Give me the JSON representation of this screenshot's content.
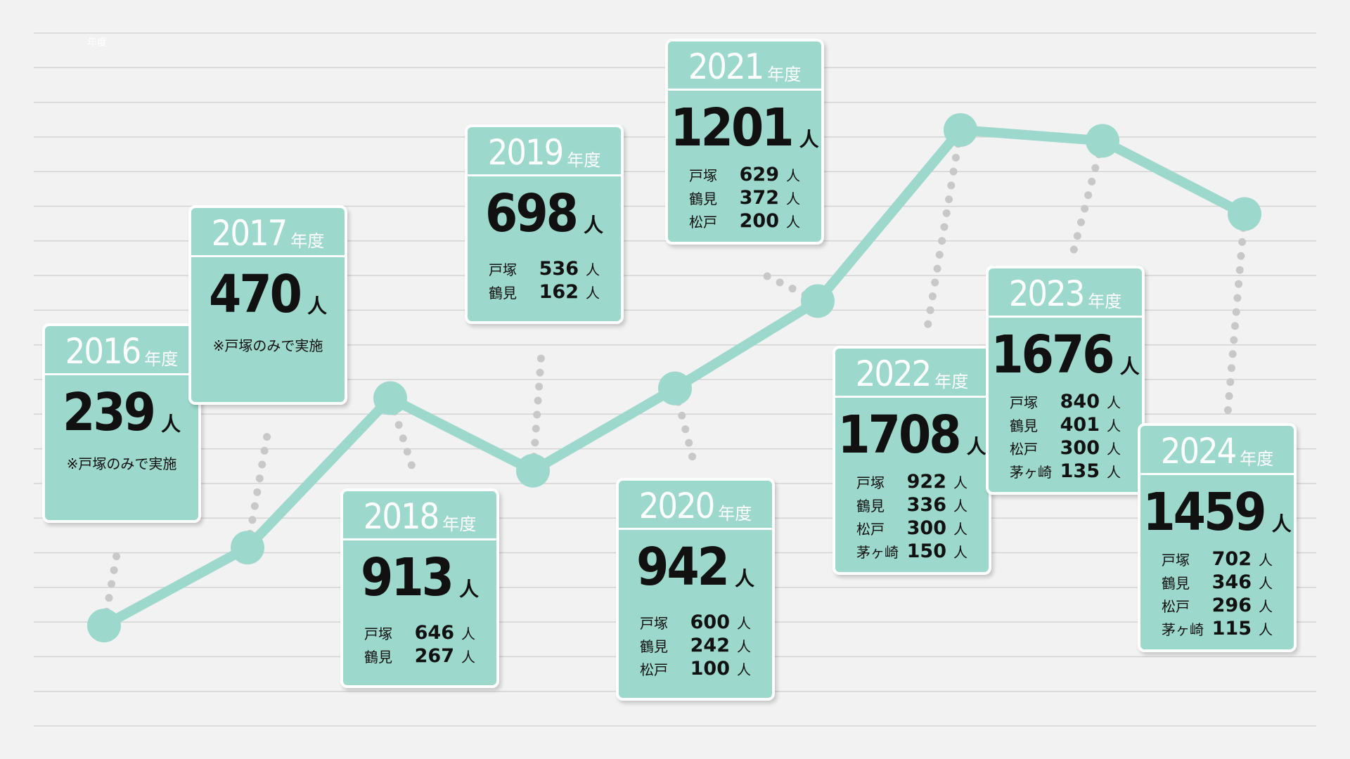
{
  "colors": {
    "background": "#f2f2f2",
    "line": "#9dd8cd",
    "card": "#9dd8cd",
    "dots": "#c8c8c8",
    "grid": "#d4d4d4"
  },
  "corner_label": "年度",
  "year_suffix": "年度",
  "unit": "人",
  "chart_data": {
    "type": "line",
    "title": "",
    "xlabel": "",
    "ylabel": "",
    "grid": true,
    "categories": [
      "2016",
      "2017",
      "2018",
      "2019",
      "2020",
      "2021",
      "2022",
      "2023",
      "2024"
    ],
    "values": [
      239,
      470,
      913,
      698,
      942,
      1201,
      1708,
      1676,
      1459
    ],
    "series": [
      {
        "values": [
          239,
          470,
          913,
          698,
          942,
          1201,
          1708,
          1676,
          1459
        ]
      }
    ],
    "ylim": [
      0,
      1800
    ]
  },
  "cards": [
    {
      "year": "2016",
      "total": "239",
      "note": "※戸塚のみで実施",
      "rows": []
    },
    {
      "year": "2017",
      "total": "470",
      "note": "※戸塚のみで実施",
      "rows": []
    },
    {
      "year": "2018",
      "total": "913",
      "note": "",
      "rows": [
        {
          "name": "戸塚",
          "value": "646"
        },
        {
          "name": "鶴見",
          "value": "267"
        }
      ]
    },
    {
      "year": "2019",
      "total": "698",
      "note": "",
      "rows": [
        {
          "name": "戸塚",
          "value": "536"
        },
        {
          "name": "鶴見",
          "value": "162"
        }
      ]
    },
    {
      "year": "2020",
      "total": "942",
      "note": "",
      "rows": [
        {
          "name": "戸塚",
          "value": "600"
        },
        {
          "name": "鶴見",
          "value": "242"
        },
        {
          "name": "松戸",
          "value": "100"
        }
      ]
    },
    {
      "year": "2021",
      "total": "1201",
      "note": "",
      "rows": [
        {
          "name": "戸塚",
          "value": "629"
        },
        {
          "name": "鶴見",
          "value": "372"
        },
        {
          "name": "松戸",
          "value": "200"
        }
      ]
    },
    {
      "year": "2022",
      "total": "1708",
      "note": "",
      "rows": [
        {
          "name": "戸塚",
          "value": "922"
        },
        {
          "name": "鶴見",
          "value": "336"
        },
        {
          "name": "松戸",
          "value": "300"
        },
        {
          "name": "茅ヶ崎",
          "value": "150"
        }
      ]
    },
    {
      "year": "2023",
      "total": "1676",
      "note": "",
      "rows": [
        {
          "name": "戸塚",
          "value": "840"
        },
        {
          "name": "鶴見",
          "value": "401"
        },
        {
          "name": "松戸",
          "value": "300"
        },
        {
          "name": "茅ヶ崎",
          "value": "135"
        }
      ]
    },
    {
      "year": "2024",
      "total": "1459",
      "note": "",
      "rows": [
        {
          "name": "戸塚",
          "value": "702"
        },
        {
          "name": "鶴見",
          "value": "346"
        },
        {
          "name": "松戸",
          "value": "296"
        },
        {
          "name": "茅ヶ崎",
          "value": "115"
        }
      ]
    }
  ]
}
